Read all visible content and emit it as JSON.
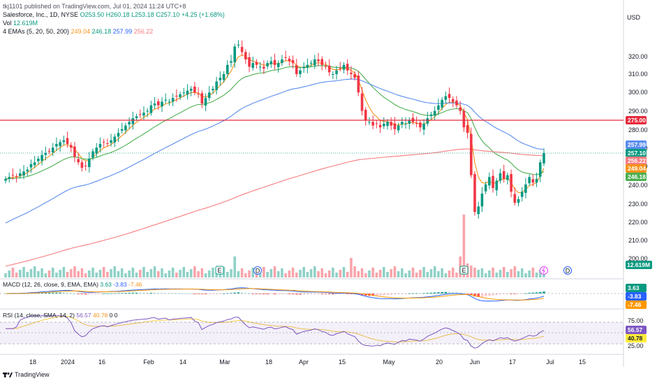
{
  "published": "tkj1101 published on TradingView.com, Jul 01, 2024 11:24 UTC+8",
  "symbol_line": {
    "name": "Salesforce, Inc., 1D, NYSE",
    "open": "O253.50",
    "high": "H260.18",
    "low": "L253.18",
    "close": "C257.10",
    "change": "+4.25 (+1.68%)"
  },
  "vol_line": {
    "label": "Vol",
    "value": "12.619M"
  },
  "ema_line": {
    "label": "4 EMAs (5, 20, 50, 200)",
    "v1": "249.04",
    "v2": "246.18",
    "v3": "257.99",
    "v4": "256.22"
  },
  "macd_line": {
    "label": "MACD (12, 26, close, 9, EMA, EMA)",
    "v1": "3.63",
    "v2": "-3.83",
    "v3": "-7.46"
  },
  "rsi_line": {
    "label": "RSI (14, close, SMA, 14, 2)",
    "v1": "56.57",
    "v2": "40.78",
    "v3": "0",
    "v4": "0"
  },
  "currency": "USD",
  "price_axis_ticks": [
    "320.00",
    "310.00",
    "300.00",
    "290.00",
    "280.00",
    "270.00",
    "260.00",
    "240.00",
    "230.00",
    "220.00",
    "210.00",
    "200.00"
  ],
  "price_labels": {
    "hline": "275.00",
    "ema50": "257.99",
    "close": "257.10",
    "ema200": "256.22",
    "ema5": "249.04",
    "ema20": "246.18",
    "volume": "12.619M"
  },
  "macd_labels": {
    "hist": "3.63",
    "macd": "-3.83",
    "signal": "-7.46"
  },
  "rsi_axis": {
    "top": "75.00",
    "bottom": "25.00"
  },
  "rsi_labels": {
    "rsi": "56.57",
    "ma": "40.78"
  },
  "x_ticks": [
    "18",
    "2024",
    "16",
    "Feb",
    "14",
    "Mar",
    "18",
    "Apr",
    "15",
    "May",
    "20",
    "Jun",
    "17",
    "Jul",
    "15"
  ],
  "event_markers": {
    "earnings": "E",
    "dividend": "D"
  },
  "logo_text": "TradingView",
  "colors": {
    "up": "#089981",
    "down": "#f23645",
    "ema5": "#f7931a",
    "ema20": "#4caf50",
    "ema50": "#5b8def",
    "ema200": "#f77c80",
    "hline": "#e52b3d",
    "macd": "#2962ff",
    "signal": "#ff9800"
  }
}
